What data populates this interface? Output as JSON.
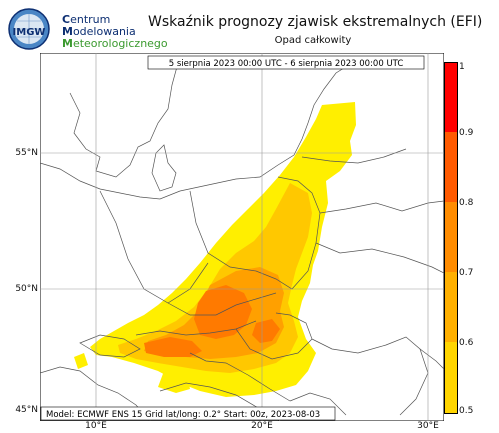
{
  "org": {
    "logo_text": "IMGW",
    "lines": [
      {
        "cap": "C",
        "rest": "entrum"
      },
      {
        "cap": "M",
        "rest": "odelowania"
      },
      {
        "cap": "M",
        "rest": "eteorologicznego"
      }
    ]
  },
  "title": "Wskaźnik prognozy zjawisk ekstremalnych (EFI)",
  "subtitle": "Opad całkowity",
  "map": {
    "date_range": "5 sierpnia 2023 00:00 UTC - 6 sierpnia 2023 00:00 UTC",
    "footer": "Model: ECMWF  ENS 15  Grid lat/long: 0.2°  Start: 00z, 2023-08-03",
    "lat_labels": [
      "55°N",
      "50°N",
      "45°N"
    ],
    "lon_labels": [
      "10°E",
      "20°E",
      "30°E"
    ]
  },
  "colorbar": {
    "ticks": [
      "1",
      "0.9",
      "0.8",
      "0.7",
      "0.6",
      "0.5"
    ],
    "colors": [
      "#ff0000",
      "#ff5a00",
      "#ff8c00",
      "#ffb000",
      "#ffd500",
      "#ffff00"
    ]
  }
}
